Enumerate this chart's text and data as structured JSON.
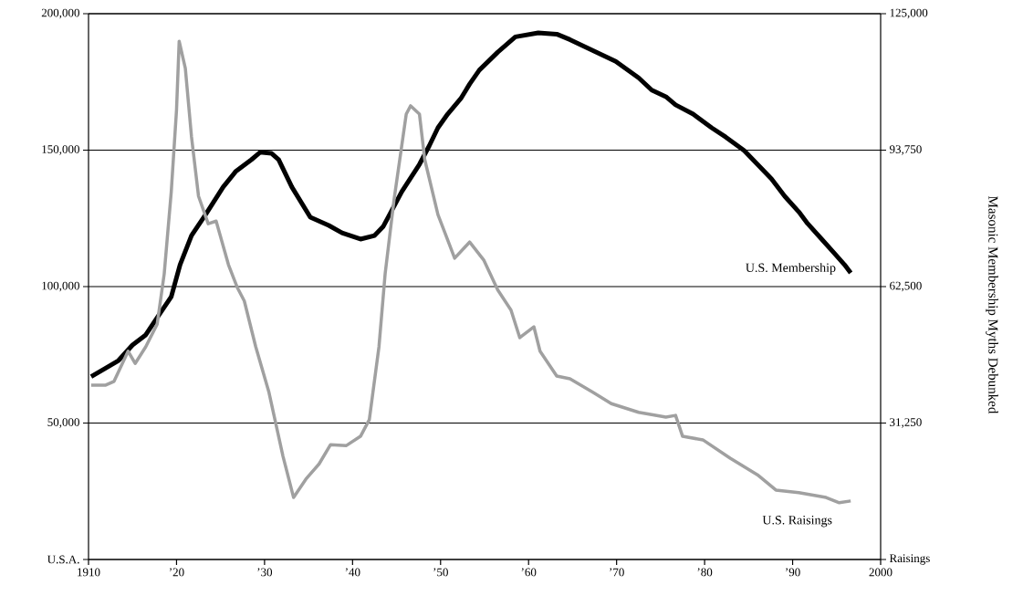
{
  "chart_data": {
    "type": "line",
    "annotations": [
      "Masonic Membership Myths Debunked"
    ],
    "xlim": [
      1910,
      2000
    ],
    "xticks": [
      1910,
      {
        "value": 1920,
        "label": "’20"
      },
      {
        "value": 1930,
        "label": "’30"
      },
      {
        "value": 1940,
        "label": "’40"
      },
      {
        "value": 1950,
        "label": "’50"
      },
      {
        "value": 1960,
        "label": "’60"
      },
      {
        "value": 1970,
        "label": "’70"
      },
      {
        "value": 1980,
        "label": "’80"
      },
      {
        "value": 1990,
        "label": "’90"
      },
      2000
    ],
    "ylim": [
      0,
      200000
    ],
    "yticks": [
      {
        "value": 0,
        "label": "U.S.A."
      },
      {
        "value": 50000,
        "label": "50,000"
      },
      {
        "value": 100000,
        "label": "100,000"
      },
      {
        "value": 150000,
        "label": "150,000"
      },
      {
        "value": 200000,
        "label": "200,000"
      }
    ],
    "y2lim": [
      0,
      125000
    ],
    "y2ticks": [
      {
        "value": 0,
        "label": "Raisings"
      },
      {
        "value": 31250,
        "label": "31,250"
      },
      {
        "value": 62500,
        "label": "62,500"
      },
      {
        "value": 93750,
        "label": "93,750"
      },
      {
        "value": 125000,
        "label": "125,000"
      }
    ],
    "grid": "y",
    "series": [
      {
        "name": "U.S. Membership",
        "color": "#000000",
        "x": [
          1910.3,
          1911.9,
          1913.4,
          1915,
          1916.5,
          1918,
          1919.4,
          1920.4,
          1921.7,
          1923.3,
          1925.3,
          1926.7,
          1928.5,
          1929.5,
          1930.8,
          1931.6,
          1933.1,
          1935.2,
          1937.3,
          1938.8,
          1940.9,
          1942.5,
          1943.5,
          1945.6,
          1947.6,
          1948.7,
          1949.7,
          1950.8,
          1952.3,
          1953.3,
          1954.4,
          1956.5,
          1958.5,
          1961.1,
          1963.2,
          1964.7,
          1967.3,
          1969.9,
          1972.5,
          1974,
          1975.6,
          1976.7,
          1978.7,
          1980.8,
          1982.4,
          1984.5,
          1986,
          1987.6,
          1989.1,
          1990.7,
          1991.7,
          1993.3,
          1994.8,
          1995.9,
          1996.6
        ],
        "values": [
          67000,
          70000,
          72900,
          78600,
          82300,
          89600,
          96300,
          108000,
          118700,
          126400,
          136500,
          142100,
          146500,
          149200,
          148800,
          146500,
          136500,
          125400,
          122400,
          119700,
          117400,
          118700,
          122100,
          134800,
          144800,
          151500,
          158200,
          163200,
          168900,
          174200,
          179300,
          185900,
          191500,
          193000,
          192500,
          190500,
          186500,
          182500,
          176500,
          172000,
          169600,
          166600,
          163200,
          158200,
          154800,
          149800,
          144800,
          139500,
          133100,
          127400,
          123100,
          117400,
          112000,
          108000,
          105000
        ]
      },
      {
        "name": "U.S. Raisings",
        "color": "#a0a0a0",
        "axis": "y2",
        "x": [
          1910.3,
          1911.9,
          1912.9,
          1914.5,
          1915.3,
          1916.5,
          1917.8,
          1918.6,
          1919.4,
          1920,
          1920.3,
          1921,
          1921.7,
          1922.5,
          1923.6,
          1924.5,
          1925.9,
          1926.9,
          1927.7,
          1929,
          1930.5,
          1932.1,
          1933.3,
          1934.7,
          1936.2,
          1937.5,
          1939.3,
          1940.9,
          1941.9,
          1943,
          1943.7,
          1944.7,
          1946.1,
          1946.6,
          1947.6,
          1948.2,
          1949.7,
          1951.6,
          1953.3,
          1954.9,
          1956.5,
          1958,
          1959,
          1960.6,
          1961.3,
          1963.2,
          1964.7,
          1967.3,
          1969.4,
          1972.5,
          1975.6,
          1976.7,
          1977.5,
          1979.8,
          1982.9,
          1986,
          1988.1,
          1990.7,
          1993.8,
          1995.3,
          1996.6
        ],
        "values": [
          39900,
          39900,
          40800,
          47700,
          44900,
          48700,
          53900,
          65400,
          84200,
          103000,
          118700,
          112500,
          96800,
          83200,
          76900,
          77500,
          67500,
          62300,
          59200,
          48700,
          38300,
          23600,
          14200,
          18400,
          21900,
          26300,
          26100,
          28200,
          32000,
          48700,
          65400,
          82200,
          102000,
          103900,
          102000,
          91600,
          79000,
          69000,
          72700,
          68600,
          61700,
          57100,
          50800,
          53300,
          47700,
          42000,
          41400,
          38300,
          35700,
          33700,
          32600,
          33000,
          28200,
          27400,
          23200,
          19400,
          15900,
          15300,
          14200,
          13000,
          13400
        ]
      }
    ]
  }
}
